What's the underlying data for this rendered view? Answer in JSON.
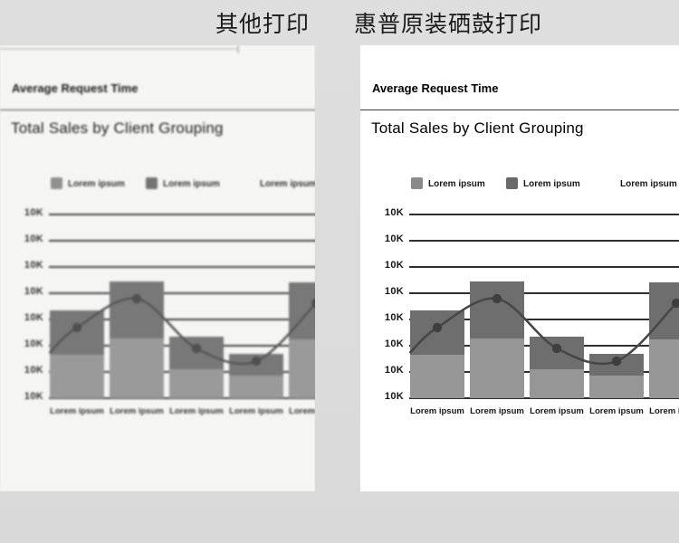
{
  "captions": {
    "left": "其他打印",
    "right": "惠普原装硒鼓打印"
  },
  "document": {
    "header_title": "Average Request Time",
    "section_title": "Total Sales by Client Grouping",
    "legend": [
      {
        "label": "Lorem ipsum",
        "swatch": "#8a8a8a"
      },
      {
        "label": "Lorem ipsum",
        "swatch": "#696969"
      },
      {
        "label": "Lorem ipsum",
        "swatch": null
      }
    ]
  },
  "chart_data": {
    "type": "combo-bar-line",
    "title": "Total Sales by Client Grouping",
    "categories": [
      "Lorem ipsum",
      "Lorem ipsum",
      "Lorem ipsum",
      "Lorem ipsum",
      "Lorem ipsum"
    ],
    "y_tick_labels": [
      "10K",
      "10K",
      "10K",
      "10K",
      "10K",
      "10K",
      "10K",
      "10K"
    ],
    "y_unit_per_gridline": "10K",
    "ylim": [
      0,
      7
    ],
    "grid": true,
    "legend_position": "top",
    "series": [
      {
        "name": "stack-bottom",
        "color": "#969696",
        "values": [
          1.66,
          2.28,
          1.1,
          0.86,
          2.24
        ]
      },
      {
        "name": "stack-top",
        "color": "#6e6e6e",
        "values": [
          1.69,
          2.17,
          1.24,
          0.83,
          2.17
        ]
      }
    ],
    "line": {
      "name": "trend",
      "color": "#474747",
      "point_color": "#3f3f3f",
      "start_value": 1.72,
      "values": [
        2.69,
        3.79,
        1.9,
        1.41,
        3.62
      ]
    },
    "colors": {
      "gridline": "#2f2f2f",
      "page_left_bg": "#f5f5f3",
      "page_right_bg": "#ffffff",
      "background": "#dcdcdc"
    }
  }
}
